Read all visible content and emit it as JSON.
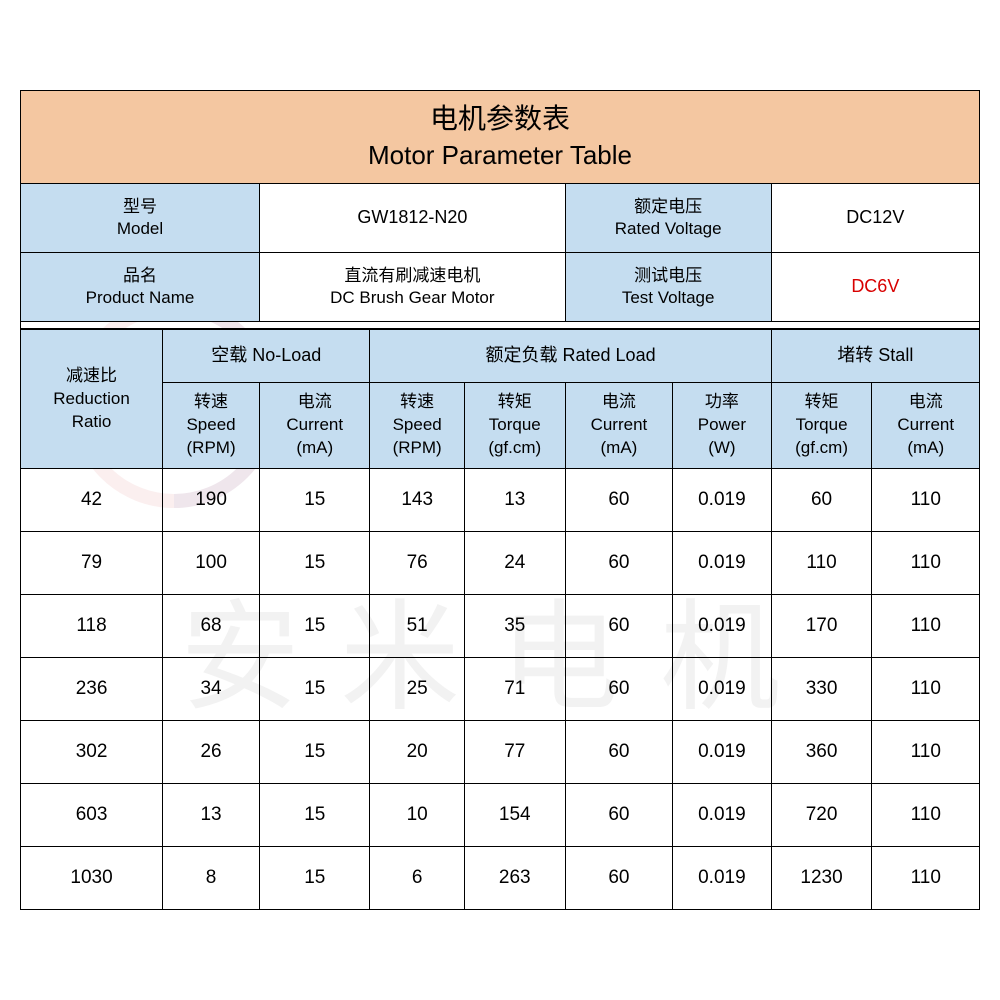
{
  "title_cn": "电机参数表",
  "title_en": "Motor Parameter Table",
  "meta": {
    "model_label_cn": "型号",
    "model_label_en": "Model",
    "model_value": "GW1812-N20",
    "rated_voltage_label_cn": "额定电压",
    "rated_voltage_label_en": "Rated Voltage",
    "rated_voltage_value": "DC12V",
    "product_label_cn": "品名",
    "product_label_en": "Product Name",
    "product_value_cn": "直流有刷减速电机",
    "product_value_en": "DC Brush Gear Motor",
    "test_voltage_label_cn": "测试电压",
    "test_voltage_label_en": "Test Voltage",
    "test_voltage_value": "DC6V"
  },
  "groups": {
    "ratio_cn": "减速比",
    "ratio_en": "Reduction",
    "ratio_en2": "Ratio",
    "noload_cn": "空载 No-Load",
    "rated_cn": "额定负载 Rated Load",
    "stall_cn": "堵转 Stall"
  },
  "cols": {
    "speed_cn": "转速",
    "speed_en": "Speed",
    "speed_unit": "(RPM)",
    "current_cn": "电流",
    "current_en": "Current",
    "current_unit": "(mA)",
    "torque_cn": "转矩",
    "torque_en": "Torque",
    "torque_unit": "(gf.cm)",
    "power_cn": "功率",
    "power_en": "Power",
    "power_unit": "(W)"
  },
  "rows": [
    {
      "ratio": "42",
      "nl_speed": "190",
      "nl_cur": "15",
      "rl_speed": "143",
      "rl_torque": "13",
      "rl_cur": "60",
      "rl_power": "0.019",
      "st_torque": "60",
      "st_cur": "110"
    },
    {
      "ratio": "79",
      "nl_speed": "100",
      "nl_cur": "15",
      "rl_speed": "76",
      "rl_torque": "24",
      "rl_cur": "60",
      "rl_power": "0.019",
      "st_torque": "110",
      "st_cur": "110"
    },
    {
      "ratio": "118",
      "nl_speed": "68",
      "nl_cur": "15",
      "rl_speed": "51",
      "rl_torque": "35",
      "rl_cur": "60",
      "rl_power": "0.019",
      "st_torque": "170",
      "st_cur": "110"
    },
    {
      "ratio": "236",
      "nl_speed": "34",
      "nl_cur": "15",
      "rl_speed": "25",
      "rl_torque": "71",
      "rl_cur": "60",
      "rl_power": "0.019",
      "st_torque": "330",
      "st_cur": "110"
    },
    {
      "ratio": "302",
      "nl_speed": "26",
      "nl_cur": "15",
      "rl_speed": "20",
      "rl_torque": "77",
      "rl_cur": "60",
      "rl_power": "0.019",
      "st_torque": "360",
      "st_cur": "110"
    },
    {
      "ratio": "603",
      "nl_speed": "13",
      "nl_cur": "15",
      "rl_speed": "10",
      "rl_torque": "154",
      "rl_cur": "60",
      "rl_power": "0.019",
      "st_torque": "720",
      "st_cur": "110"
    },
    {
      "ratio": "1030",
      "nl_speed": "8",
      "nl_cur": "15",
      "rl_speed": "6",
      "rl_torque": "263",
      "rl_cur": "60",
      "rl_power": "0.019",
      "st_torque": "1230",
      "st_cur": "110"
    }
  ],
  "colors": {
    "title_bg": "#f4c7a1",
    "header_bg": "#c5ddf0",
    "border": "#000000",
    "highlight_text": "#d80000"
  }
}
